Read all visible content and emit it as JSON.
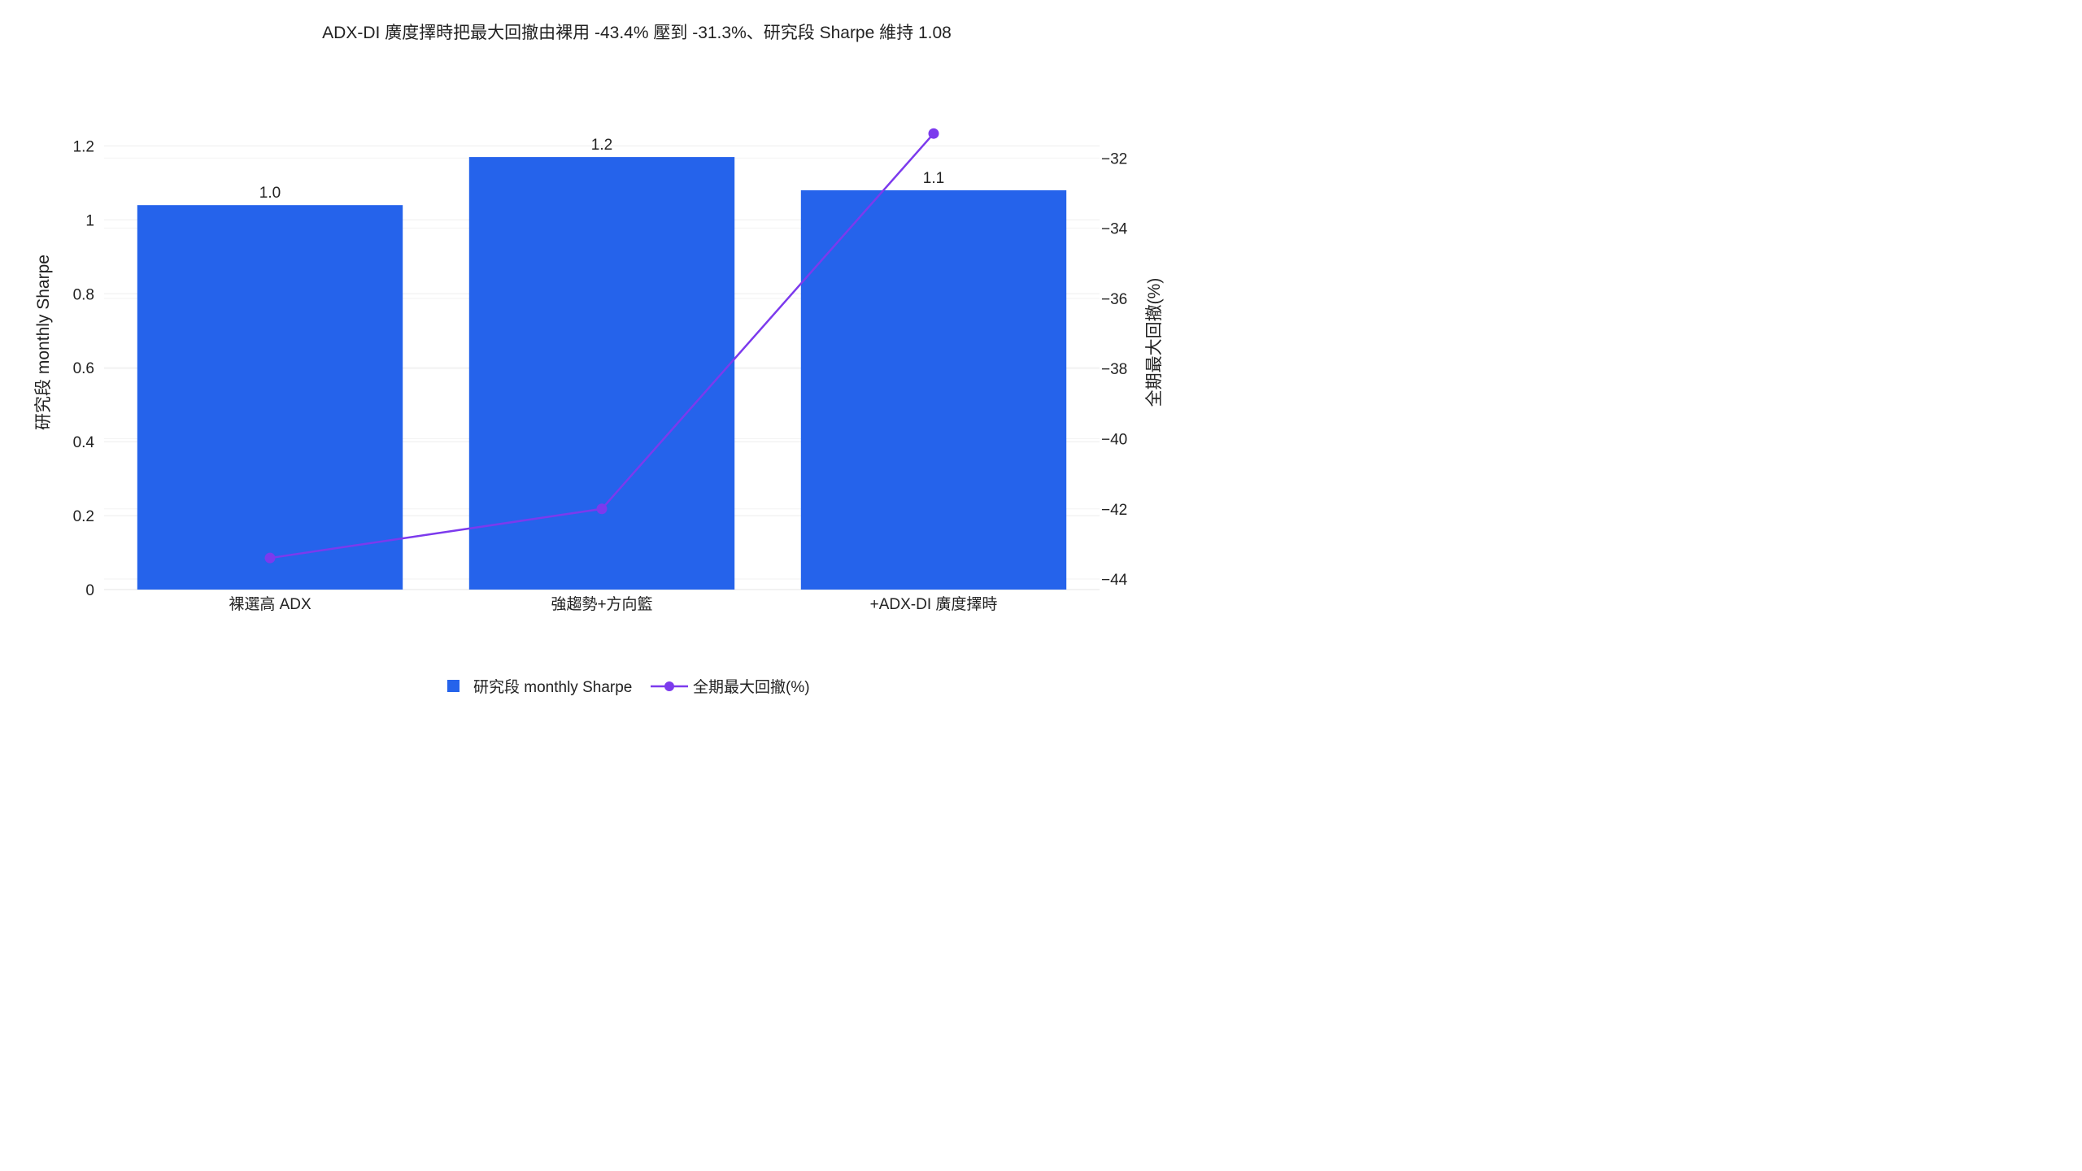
{
  "chart_data": {
    "type": "bar",
    "title": "ADX-DI 廣度擇時把最大回撤由裸用 -43.4% 壓到 -31.3%、研究段 Sharpe 維持 1.08",
    "categories": [
      "裸選高 ADX",
      "強趨勢+方向籃",
      "+ADX-DI 廣度擇時"
    ],
    "ylabel": "研究段 monthly Sharpe",
    "y2label": "全期最大回撤(%)",
    "ylim": [
      0,
      1.3
    ],
    "y2lim": [
      -44.3,
      -30.6
    ],
    "yticks": [
      0,
      0.2,
      0.4,
      0.6,
      0.8,
      1,
      1.2
    ],
    "ytick_labels": [
      "0",
      "0.2",
      "0.4",
      "0.6",
      "0.8",
      "1",
      "1.2"
    ],
    "y2ticks": [
      -44,
      -42,
      -40,
      -38,
      -36,
      -34,
      -32
    ],
    "y2tick_labels": [
      "−44",
      "−42",
      "−40",
      "−38",
      "−36",
      "−34",
      "−32"
    ],
    "grid": true,
    "legend_position": "bottom-center",
    "series": [
      {
        "name": "研究段 monthly Sharpe",
        "type": "bar",
        "axis": "left",
        "values": [
          1.04,
          1.17,
          1.08
        ],
        "labels": [
          "1.0",
          "1.2",
          "1.1"
        ],
        "color": "#2563eb"
      },
      {
        "name": "全期最大回撤(%)",
        "type": "line",
        "axis": "right",
        "values": [
          -43.4,
          -42.0,
          -31.3
        ],
        "color": "#7c3aed"
      }
    ]
  }
}
